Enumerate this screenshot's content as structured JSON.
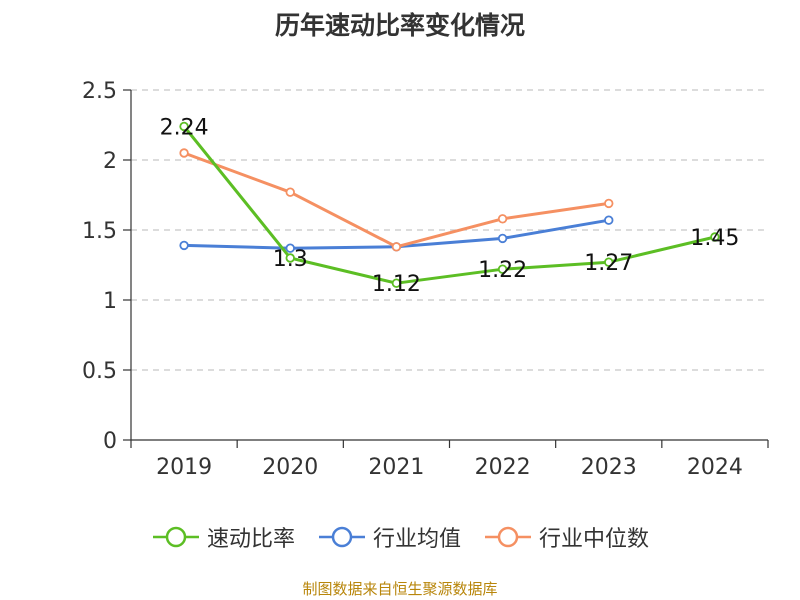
{
  "chart_data": {
    "type": "line",
    "title": "历年速动比率变化情况",
    "categories": [
      "2019",
      "2020",
      "2021",
      "2022",
      "2023",
      "2024"
    ],
    "ylim": [
      0,
      2.5
    ],
    "yticks": [
      "0",
      "0.5",
      "1",
      "1.5",
      "2",
      "2.5"
    ],
    "grid": true,
    "legend_position": "bottom",
    "series": [
      {
        "name": "速动比率",
        "color": "#5cbe24",
        "values": [
          2.24,
          1.3,
          1.12,
          1.22,
          1.27,
          1.45
        ],
        "labels": [
          "2.24",
          "1.3",
          "1.12",
          "1.22",
          "1.27",
          "1.45"
        ]
      },
      {
        "name": "行业均值",
        "color": "#4a7fd6",
        "values": [
          1.39,
          1.37,
          1.38,
          1.44,
          1.57,
          null
        ]
      },
      {
        "name": "行业中位数",
        "color": "#f59062",
        "values": [
          2.05,
          1.77,
          1.38,
          1.58,
          1.69,
          null
        ]
      }
    ]
  },
  "source_note": "制图数据来自恒生聚源数据库"
}
